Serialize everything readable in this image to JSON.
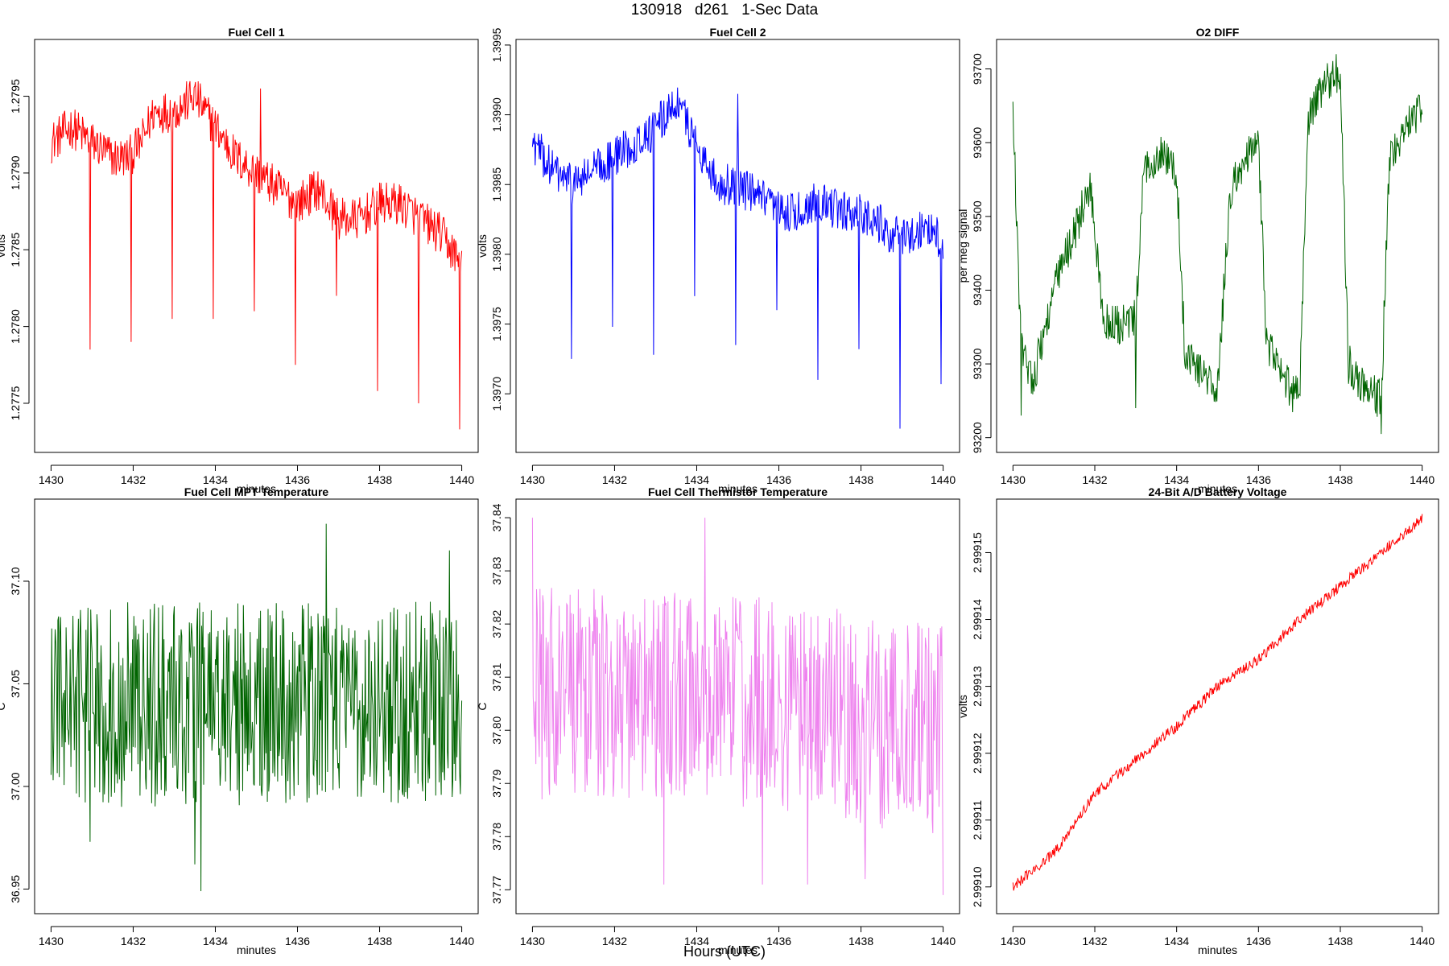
{
  "page": {
    "title": "130918   d261   1-Sec Data",
    "footer": "Hours (UTC)"
  },
  "chart_data": [
    {
      "type": "line",
      "title": "Fuel Cell 1",
      "xlabel": "minutes",
      "ylabel": "volts",
      "color": "#ff0000",
      "xlim": [
        1429.6,
        1440.4
      ],
      "ylim": [
        1.27718,
        1.27987
      ],
      "xticks": [
        1430,
        1432,
        1434,
        1436,
        1438,
        1440
      ],
      "yticks": [
        1.2775,
        1.278,
        1.2785,
        1.279,
        1.2795
      ],
      "ytick_labels": [
        "1.2775",
        "1.2780",
        "1.2785",
        "1.2790",
        "1.2795"
      ],
      "x": [
        1430,
        1430.5,
        1431,
        1431.5,
        1431.9,
        1432.2,
        1432.5,
        1433,
        1433.5,
        1434,
        1434.5,
        1435,
        1435.5,
        1436,
        1436.5,
        1437,
        1437.5,
        1438,
        1438.5,
        1439,
        1439.5,
        1440
      ],
      "values": [
        1.2792,
        1.2793,
        1.2792,
        1.2791,
        1.2791,
        1.2792,
        1.2794,
        1.2794,
        1.2795,
        1.2793,
        1.2791,
        1.279,
        1.2789,
        1.2788,
        1.2789,
        1.2787,
        1.2787,
        1.2788,
        1.2788,
        1.2787,
        1.2786,
        1.2784
      ],
      "noise": 0.00014,
      "spikes": [
        [
          1430.95,
          1.27785
        ],
        [
          1431.95,
          1.2779
        ],
        [
          1432.95,
          1.27805
        ],
        [
          1433.95,
          1.27805
        ],
        [
          1434.95,
          1.2781
        ],
        [
          1435.1,
          1.27955
        ],
        [
          1435.95,
          1.27775
        ],
        [
          1436.95,
          1.2782
        ],
        [
          1437.95,
          1.27758
        ],
        [
          1438.95,
          1.2775
        ],
        [
          1439.95,
          1.27733
        ]
      ]
    },
    {
      "type": "line",
      "title": "Fuel Cell 2",
      "xlabel": "minutes",
      "ylabel": "volts",
      "color": "#0000ff",
      "xlim": [
        1429.6,
        1440.4
      ],
      "ylim": [
        1.39658,
        1.39954
      ],
      "xticks": [
        1430,
        1432,
        1434,
        1436,
        1438,
        1440
      ],
      "yticks": [
        1.397,
        1.3975,
        1.398,
        1.3985,
        1.399,
        1.3995
      ],
      "ytick_labels": [
        "1.3970",
        "1.3975",
        "1.3980",
        "1.3985",
        "1.3990",
        "1.3995"
      ],
      "x": [
        1430,
        1430.5,
        1431,
        1431.5,
        1432,
        1432.5,
        1433,
        1433.5,
        1434,
        1434.5,
        1435,
        1435.5,
        1436,
        1436.5,
        1437,
        1437.5,
        1438,
        1438.5,
        1439,
        1439.5,
        1440
      ],
      "values": [
        1.3988,
        1.3986,
        1.3985,
        1.3986,
        1.3987,
        1.3988,
        1.3989,
        1.3991,
        1.3988,
        1.3985,
        1.3985,
        1.3984,
        1.3983,
        1.3983,
        1.3984,
        1.3983,
        1.3983,
        1.3982,
        1.3981,
        1.3982,
        1.3981
      ],
      "noise": 0.00015,
      "spikes": [
        [
          1430.95,
          1.39725
        ],
        [
          1431.95,
          1.39748
        ],
        [
          1432.95,
          1.39728
        ],
        [
          1433.95,
          1.3977
        ],
        [
          1434.95,
          1.39735
        ],
        [
          1435.0,
          1.39915
        ],
        [
          1435.95,
          1.3976
        ],
        [
          1436.95,
          1.3971
        ],
        [
          1437.95,
          1.39732
        ],
        [
          1438.95,
          1.39675
        ],
        [
          1439.95,
          1.39707
        ]
      ]
    },
    {
      "type": "line",
      "title": "O2 DIFF",
      "xlabel": "minutes",
      "ylabel": "per meg signal",
      "color": "#006400",
      "xlim": [
        1429.6,
        1440.4
      ],
      "ylim": [
        93180,
        93740
      ],
      "xticks": [
        1430,
        1432,
        1434,
        1436,
        1438,
        1440
      ],
      "yticks": [
        93200,
        93300,
        93400,
        93500,
        93600,
        93700
      ],
      "ytick_labels": [
        "93200",
        "93300",
        "93400",
        "93500",
        "93600",
        "93700"
      ],
      "x": [
        1430,
        1430.05,
        1430.2,
        1430.5,
        1431,
        1431.5,
        1431.9,
        1432.2,
        1432.6,
        1433.0,
        1433.2,
        1433.6,
        1434.0,
        1434.2,
        1434.6,
        1435.0,
        1435.3,
        1435.6,
        1436.0,
        1436.2,
        1436.6,
        1437.0,
        1437.2,
        1437.6,
        1438.0,
        1438.2,
        1438.6,
        1439.0,
        1439.2,
        1439.6,
        1440.0
      ],
      "values": [
        93640,
        93560,
        93320,
        93280,
        93400,
        93480,
        93540,
        93360,
        93350,
        93360,
        93560,
        93590,
        93560,
        93320,
        93290,
        93260,
        93530,
        93570,
        93600,
        93330,
        93280,
        93250,
        93630,
        93680,
        93690,
        93300,
        93270,
        93250,
        93580,
        93620,
        93650
      ],
      "noise": 28,
      "spikes": [
        [
          1430.2,
          93230
        ],
        [
          1433.0,
          93240
        ],
        [
          1437.9,
          93720
        ],
        [
          1439.0,
          93205
        ]
      ]
    },
    {
      "type": "line",
      "title": "Fuel Cell MPT Temperature",
      "xlabel": "minutes",
      "ylabel": "C",
      "color": "#006400",
      "xlim": [
        1429.6,
        1440.4
      ],
      "ylim": [
        36.938,
        37.14
      ],
      "xticks": [
        1430,
        1432,
        1434,
        1436,
        1438,
        1440
      ],
      "yticks": [
        36.95,
        37.0,
        37.05,
        37.1
      ],
      "ytick_labels": [
        "36.95",
        "37.00",
        "37.05",
        "37.10"
      ],
      "x": [
        1430,
        1432,
        1434,
        1436,
        1438,
        1440
      ],
      "values": [
        37.04,
        37.04,
        37.04,
        37.04,
        37.04,
        37.04
      ],
      "noise": 0.05,
      "spikes": [
        [
          1430.95,
          36.973
        ],
        [
          1433.5,
          36.962
        ],
        [
          1433.65,
          36.949
        ],
        [
          1436.7,
          37.128
        ],
        [
          1439.7,
          37.115
        ]
      ]
    },
    {
      "type": "line",
      "title": "Fuel Cell Thermistor Temperature",
      "xlabel": "minutes",
      "ylabel": "C",
      "color": "#ee82ee",
      "xlim": [
        1429.6,
        1440.4
      ],
      "ylim": [
        37.7655,
        37.8435
      ],
      "xticks": [
        1430,
        1432,
        1434,
        1436,
        1438,
        1440
      ],
      "yticks": [
        37.77,
        37.78,
        37.79,
        37.8,
        37.81,
        37.82,
        37.83,
        37.84
      ],
      "ytick_labels": [
        "37.77",
        "37.78",
        "37.79",
        "37.80",
        "37.81",
        "37.82",
        "37.83",
        "37.84"
      ],
      "x": [
        1430,
        1432,
        1434,
        1436,
        1438,
        1440
      ],
      "values": [
        37.807,
        37.807,
        37.806,
        37.805,
        37.802,
        37.8
      ],
      "noise": 0.02,
      "spikes": [
        [
          1430.0,
          37.84
        ],
        [
          1433.2,
          37.771
        ],
        [
          1434.2,
          37.84
        ],
        [
          1435.6,
          37.771
        ],
        [
          1436.7,
          37.771
        ],
        [
          1438.1,
          37.772
        ],
        [
          1440.0,
          37.769
        ]
      ]
    },
    {
      "type": "line",
      "title": "24-Bit A/D Battery Voltage",
      "xlabel": "minutes",
      "ylabel": "volts",
      "color": "#ff0000",
      "xlim": [
        1429.6,
        1440.4
      ],
      "ylim": [
        2.999096,
        2.999158
      ],
      "xticks": [
        1430,
        1432,
        1434,
        1436,
        1438,
        1440
      ],
      "yticks": [
        2.9991,
        2.99911,
        2.99912,
        2.99913,
        2.99914,
        2.99915
      ],
      "ytick_labels": [
        "2.99910",
        "2.99911",
        "2.99912",
        "2.99913",
        "2.99914",
        "2.99915"
      ],
      "x": [
        1430,
        1431,
        1432,
        1433,
        1434,
        1435,
        1436,
        1437,
        1438,
        1439,
        1440
      ],
      "values": [
        2.9991,
        2.999105,
        2.999114,
        2.999119,
        2.999124,
        2.99913,
        2.999134,
        2.99914,
        2.999145,
        2.99915,
        2.999155
      ],
      "noise": 8e-07,
      "spikes": []
    }
  ]
}
